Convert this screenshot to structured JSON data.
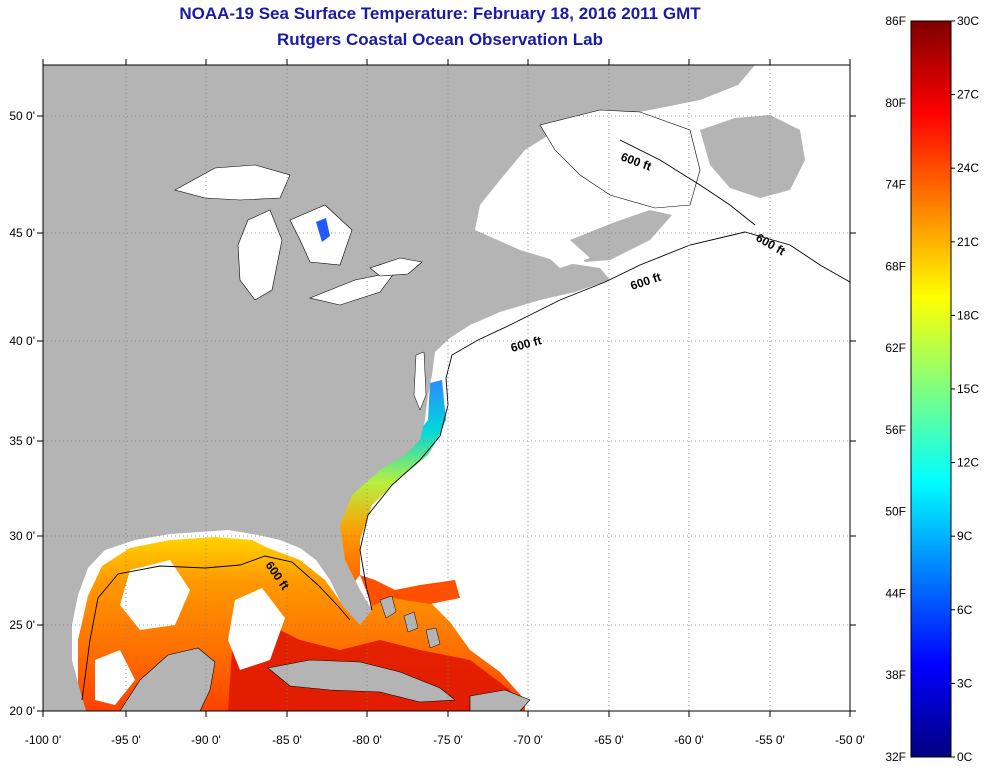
{
  "title": "NOAA-19 Sea Surface Temperature:  February 18, 2016 2011 GMT",
  "subtitle": "Rutgers Coastal Ocean Observation Lab",
  "map": {
    "lon_labels": [
      "-100 0'",
      "-95 0'",
      "-90 0'",
      "-85 0'",
      "-80 0'",
      "-75 0'",
      "-70 0'",
      "-65 0'",
      "-60 0'",
      "-55 0'",
      "-50 0'"
    ],
    "lat_labels": [
      "50 0'",
      "45 0'",
      "40 0'",
      "35 0'",
      "30 0'",
      "25 0'",
      "20 0'"
    ],
    "contour_label": "600 ft",
    "colors": {
      "land": "#b4b4b4",
      "ocean_no_data": "#ffffff",
      "grid": "#808080",
      "contour": "#000000"
    }
  },
  "colorbar": {
    "fahrenheit_labels": [
      "86F",
      "80F",
      "74F",
      "68F",
      "62F",
      "56F",
      "50F",
      "44F",
      "38F",
      "32F"
    ],
    "celsius_labels": [
      "30C",
      "27C",
      "24C",
      "21C",
      "18C",
      "15C",
      "12C",
      "9C",
      "6C",
      "3C",
      "0C"
    ],
    "colors": [
      "#00007f",
      "#0000ff",
      "#007fff",
      "#00ffff",
      "#7fff7f",
      "#ffff00",
      "#ff7f00",
      "#ff0000",
      "#7f0000"
    ]
  }
}
